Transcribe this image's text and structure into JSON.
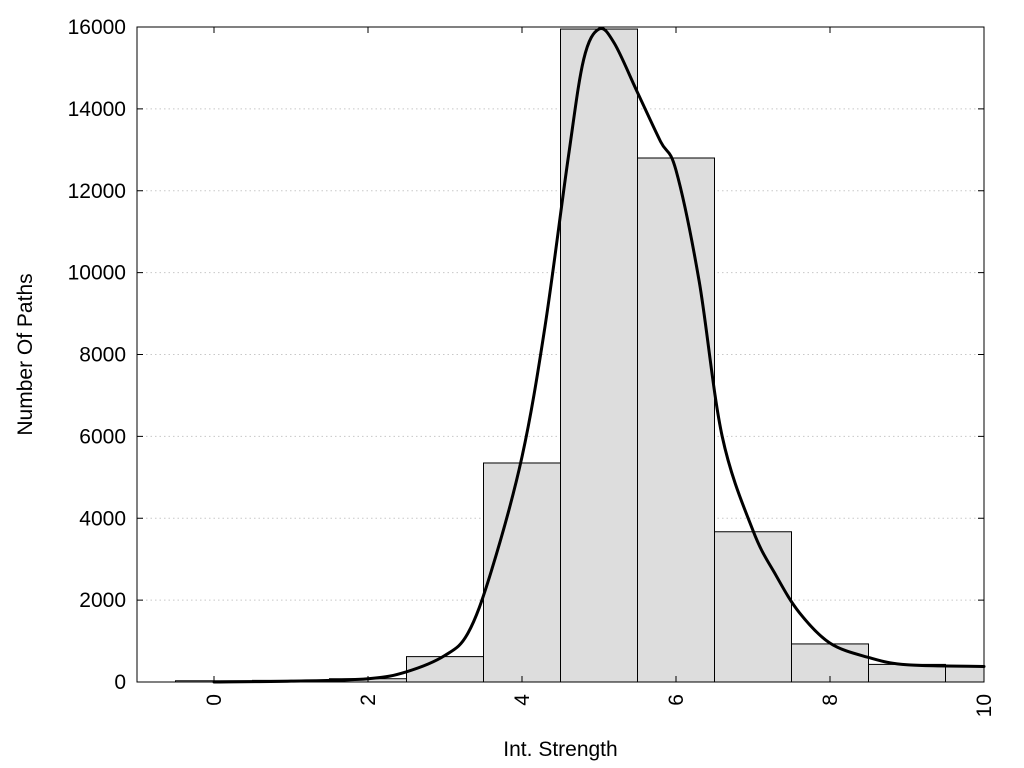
{
  "chart_data": {
    "type": "bar",
    "title": "",
    "xlabel": "Int. Strength",
    "ylabel": "Number Of Paths",
    "xlim": [
      -1,
      10
    ],
    "ylim": [
      0,
      16000
    ],
    "x_ticks": [
      "0",
      "2",
      "4",
      "6",
      "8",
      "10"
    ],
    "y_ticks": [
      "0",
      "2000",
      "4000",
      "6000",
      "8000",
      "10000",
      "12000",
      "14000",
      "16000"
    ],
    "grid": "horizontal dotted",
    "legend": "none",
    "colors": {
      "bar_fill": "#dddddd",
      "bar_stroke": "#000000",
      "curve": "#000000",
      "grid": "#c8c8c8"
    },
    "bins": {
      "x": [
        0,
        1,
        2,
        3,
        4,
        5,
        6,
        7,
        8,
        9,
        10
      ],
      "width": 1,
      "values": [
        30,
        40,
        80,
        620,
        5350,
        15950,
        12800,
        3670,
        930,
        430,
        380
      ]
    },
    "fit_curve": {
      "x": [
        0,
        1,
        2,
        2.5,
        3,
        3.3,
        3.6,
        4,
        4.3,
        4.6,
        4.8,
        5,
        5.2,
        5.5,
        5.8,
        6,
        6.3,
        6.6,
        7,
        7.3,
        7.6,
        8,
        8.5,
        9,
        10
      ],
      "y": [
        0,
        20,
        80,
        250,
        650,
        1200,
        2700,
        5500,
        8700,
        12800,
        15200,
        15950,
        15600,
        14400,
        13200,
        12500,
        9800,
        6000,
        3700,
        2600,
        1700,
        950,
        600,
        420,
        380
      ]
    }
  }
}
